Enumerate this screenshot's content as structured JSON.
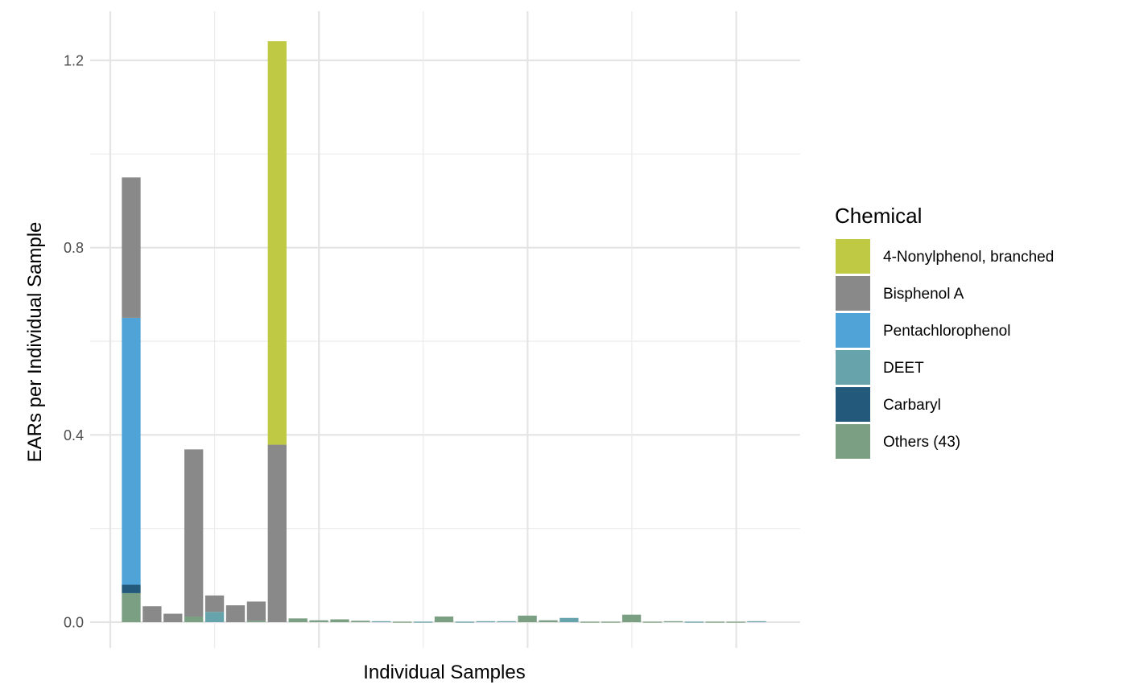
{
  "chart_data": {
    "type": "bar",
    "stacked": true,
    "xlabel": "Individual Samples",
    "ylabel": "EARs per Individual Sample",
    "ylim": [
      -0.02,
      1.29
    ],
    "yticks": [
      0.0,
      0.4,
      0.8,
      1.2
    ],
    "ytick_labels": [
      "0.0",
      "0.4",
      "0.8",
      "1.2"
    ],
    "grid": true,
    "legend": {
      "title": "Chemical",
      "placement": "right",
      "entries": [
        "4-Nonylphenol, branched",
        "Bisphenol A",
        "Pentachlorophenol",
        "DEET",
        "Carbaryl",
        "Others (43)"
      ]
    },
    "colors": {
      "4-Nonylphenol, branched": "#bfc944",
      "Bisphenol A": "#898989",
      "Pentachlorophenol": "#50a3d6",
      "DEET": "#66a3ab",
      "Carbaryl": "#235a7c",
      "Others (43)": "#7b9f82"
    },
    "series_order": [
      "Others (43)",
      "Carbaryl",
      "DEET",
      "Pentachlorophenol",
      "Bisphenol A",
      "4-Nonylphenol, branched"
    ],
    "samples": [
      {
        "Others (43)": 0.062,
        "Carbaryl": 0.018,
        "Pentachlorophenol": 0.57,
        "Bisphenol A": 0.3
      },
      {
        "Bisphenol A": 0.034
      },
      {
        "Bisphenol A": 0.018
      },
      {
        "Others (43)": 0.012,
        "Bisphenol A": 0.357
      },
      {
        "DEET": 0.022,
        "Bisphenol A": 0.035
      },
      {
        "Bisphenol A": 0.036
      },
      {
        "Others (43)": 0.003,
        "Bisphenol A": 0.041
      },
      {
        "Bisphenol A": 0.379,
        "4-Nonylphenol, branched": 0.862
      },
      {
        "Others (43)": 0.008
      },
      {
        "Others (43)": 0.004
      },
      {
        "Others (43)": 0.006
      },
      {
        "Others (43)": 0.003
      },
      {
        "DEET": 0.002
      },
      {
        "Others (43)": 0.001
      },
      {
        "DEET": 0.001
      },
      {
        "Others (43)": 0.012
      },
      {
        "DEET": 0.001
      },
      {
        "DEET": 0.002
      },
      {
        "DEET": 0.002
      },
      {
        "Others (43)": 0.014
      },
      {
        "Others (43)": 0.004
      },
      {
        "DEET": 0.009
      },
      {
        "Others (43)": 0.001
      },
      {
        "Others (43)": 0.001
      },
      {
        "Others (43)": 0.016
      },
      {
        "Others (43)": 0.001
      },
      {
        "Others (43)": 0.002
      },
      {
        "DEET": 0.001
      },
      {
        "Others (43)": 0.001
      },
      {
        "Others (43)": 0.001
      },
      {
        "DEET": 0.002
      }
    ]
  }
}
